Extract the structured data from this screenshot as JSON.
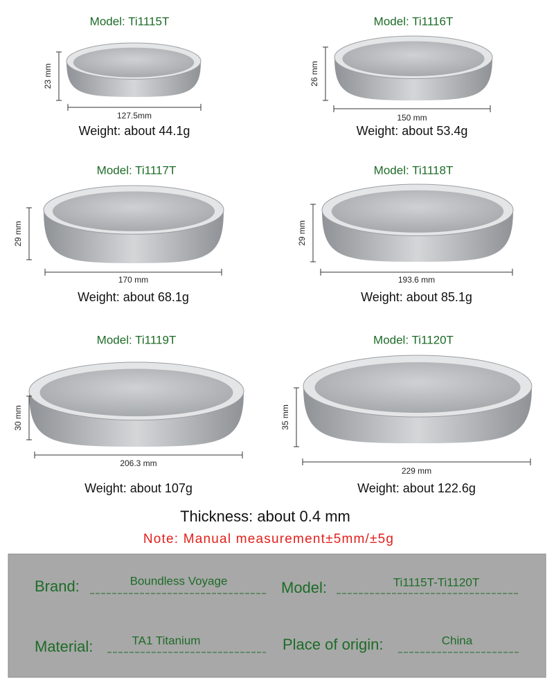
{
  "products": [
    {
      "model": "Model: Ti1115T",
      "height": "23 mm",
      "diameter": "127.5mm",
      "weight": "Weight: about 44.1g"
    },
    {
      "model": "Model: Ti1116T",
      "height": "26 mm",
      "diameter": "150 mm",
      "weight": "Weight: about 53.4g"
    },
    {
      "model": "Model: Ti1117T",
      "height": "29 mm",
      "diameter": "170 mm",
      "weight": "Weight: about 68.1g"
    },
    {
      "model": "Model: Ti1118T",
      "height": "29 mm",
      "diameter": "193.6 mm",
      "weight": "Weight: about 85.1g"
    },
    {
      "model": "Model: Ti1119T",
      "height": "30 mm",
      "diameter": "206.3 mm",
      "weight": "Weight: about 107g"
    },
    {
      "model": "Model: Ti1120T",
      "height": "35 mm",
      "diameter": "229 mm",
      "weight": "Weight: about 122.6g"
    }
  ],
  "thickness": "Thickness: about 0.4 mm",
  "note": "Note: Manual measurement±5mm/±5g",
  "specs": [
    {
      "label": "Brand:",
      "value": "Boundless Voyage"
    },
    {
      "label": "Model:",
      "value": "Ti1115T-Ti1120T"
    },
    {
      "label": "Material:",
      "value": "TA1 Titanium"
    },
    {
      "label": "Place of origin:",
      "value": "China"
    }
  ]
}
